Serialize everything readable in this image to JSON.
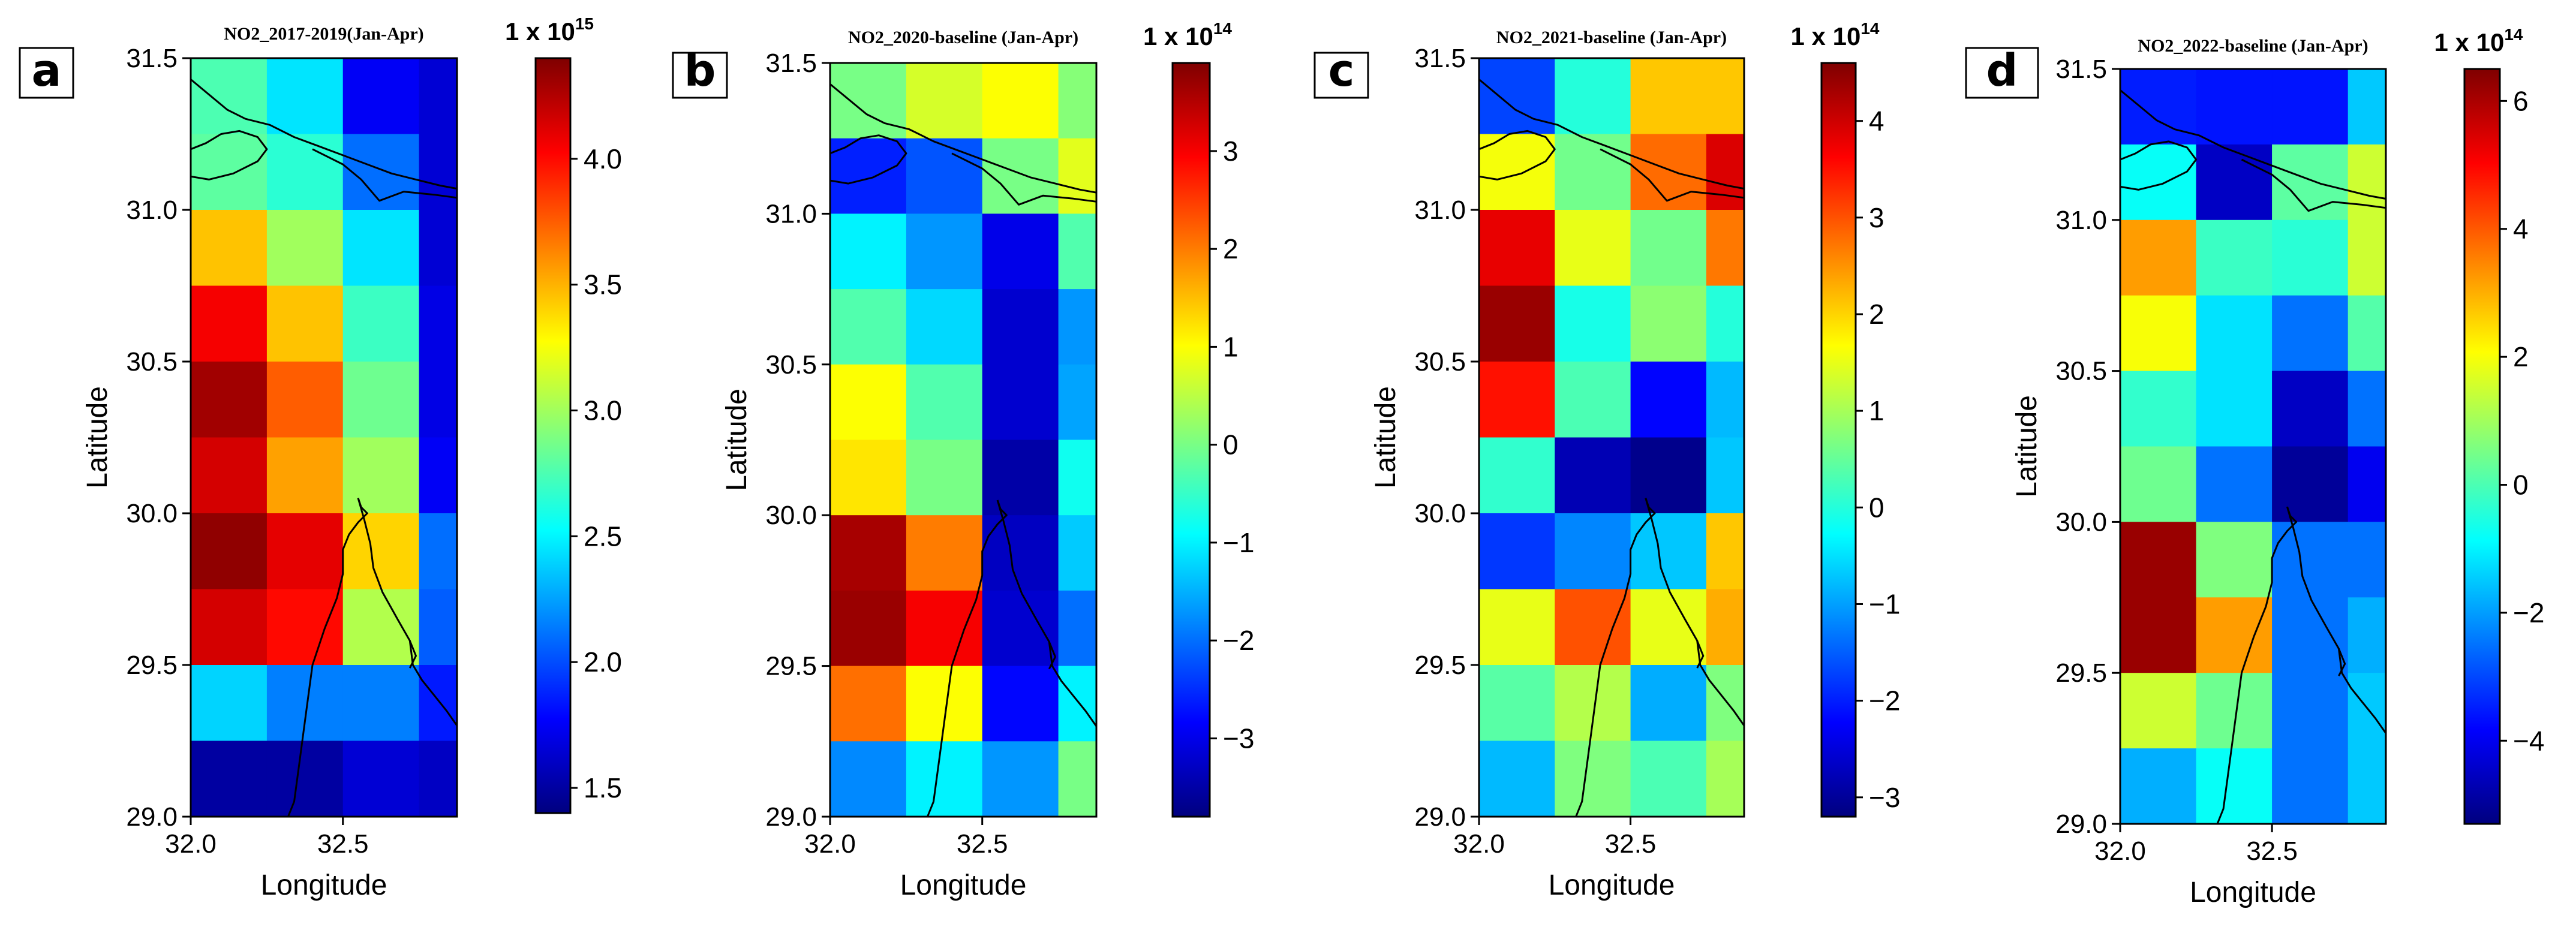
{
  "figure": {
    "coastline_color": "#000000",
    "colormap_name": "jet",
    "colormap": [
      "#00007f",
      "#0000ff",
      "#007fff",
      "#00ffff",
      "#7fff7f",
      "#ffff00",
      "#ff7f00",
      "#ff0000",
      "#7f0000"
    ]
  },
  "chart_data": [
    {
      "type": "heatmap",
      "panel_label": "a",
      "title": "NO2_2017-2019(Jan-Apr)",
      "xlabel": "Longitude",
      "ylabel": "Latitude",
      "xlim": [
        32.0,
        32.875
      ],
      "ylim": [
        29.0,
        31.5
      ],
      "xticks": [
        32.0,
        32.5
      ],
      "xtick_labels": [
        "32.0",
        "32.5"
      ],
      "yticks": [
        29.0,
        29.5,
        30.0,
        30.5,
        31.0,
        31.5
      ],
      "ytick_labels": [
        "29.0",
        "29.5",
        "30.0",
        "30.5",
        "31.0",
        "31.5"
      ],
      "x_edges": [
        32.0,
        32.25,
        32.5,
        32.75,
        32.875
      ],
      "y_edges": [
        31.5,
        31.25,
        31.0,
        30.75,
        30.5,
        30.25,
        30.0,
        29.75,
        29.5,
        29.25,
        29.0
      ],
      "values": [
        [
          2.75,
          2.45,
          1.75,
          1.65
        ],
        [
          2.8,
          2.65,
          2.1,
          1.65
        ],
        [
          3.45,
          3.0,
          2.45,
          1.65
        ],
        [
          4.05,
          3.45,
          2.7,
          1.7
        ],
        [
          4.3,
          3.75,
          2.85,
          1.7
        ],
        [
          4.15,
          3.55,
          3.0,
          1.75
        ],
        [
          4.35,
          4.1,
          3.4,
          2.1
        ],
        [
          4.15,
          4.0,
          3.05,
          2.05
        ],
        [
          2.4,
          2.15,
          2.15,
          1.85
        ],
        [
          1.5,
          1.5,
          1.65,
          1.6
        ]
      ],
      "colorbar": {
        "scale_label": "1 x 10",
        "exponent": "15",
        "min": 1.4,
        "max": 4.4,
        "ticks": [
          1.5,
          2.0,
          2.5,
          3.0,
          3.5,
          4.0
        ],
        "tick_labels": [
          "1.5",
          "2.0",
          "2.5",
          "3.0",
          "3.5",
          "4.0"
        ]
      }
    },
    {
      "type": "heatmap",
      "panel_label": "b",
      "title": "NO2_2020-baseline (Jan-Apr)",
      "xlabel": "Longitude",
      "ylabel": "Latitude",
      "xlim": [
        32.0,
        32.875
      ],
      "ylim": [
        29.0,
        31.5
      ],
      "xticks": [
        32.0,
        32.5
      ],
      "xtick_labels": [
        "32.0",
        "32.5"
      ],
      "yticks": [
        29.0,
        29.5,
        30.0,
        30.5,
        31.0,
        31.5
      ],
      "ytick_labels": [
        "29.0",
        "29.5",
        "30.0",
        "30.5",
        "31.0",
        "31.5"
      ],
      "x_edges": [
        32.0,
        32.25,
        32.5,
        32.75,
        32.875
      ],
      "y_edges": [
        31.5,
        31.25,
        31.0,
        30.75,
        30.5,
        30.25,
        30.0,
        29.75,
        29.5,
        29.25,
        29.0
      ],
      "values": [
        [
          0.0,
          0.7,
          1.0,
          0.1
        ],
        [
          -2.6,
          -2.2,
          0.0,
          0.8
        ],
        [
          -1.0,
          -1.7,
          -3.0,
          -0.3
        ],
        [
          -0.3,
          -1.2,
          -3.2,
          -1.7
        ],
        [
          1.0,
          -0.3,
          -3.2,
          -1.6
        ],
        [
          1.2,
          0.0,
          -3.5,
          -0.8
        ],
        [
          3.6,
          2.0,
          -3.3,
          -1.3
        ],
        [
          3.7,
          3.0,
          -3.2,
          -2.0
        ],
        [
          2.1,
          1.0,
          -2.8,
          -1.0
        ],
        [
          -1.8,
          -1.0,
          -1.7,
          0.0
        ]
      ],
      "colorbar": {
        "scale_label": "1 x 10",
        "exponent": "14",
        "min": -3.8,
        "max": 3.9,
        "ticks": [
          -3,
          -2,
          -1,
          0,
          1,
          2,
          3
        ],
        "tick_labels": [
          "−3",
          "−2",
          "−1",
          "0",
          "1",
          "2",
          "3"
        ]
      }
    },
    {
      "type": "heatmap",
      "panel_label": "c",
      "title": "NO2_2021-baseline (Jan-Apr)",
      "xlabel": "Longitude",
      "ylabel": "Latitude",
      "xlim": [
        32.0,
        32.875
      ],
      "ylim": [
        29.0,
        31.5
      ],
      "xticks": [
        32.0,
        32.5
      ],
      "xtick_labels": [
        "32.0",
        "32.5"
      ],
      "yticks": [
        29.0,
        29.5,
        30.0,
        30.5,
        31.0,
        31.5
      ],
      "ytick_labels": [
        "29.0",
        "29.5",
        "30.0",
        "30.5",
        "31.0",
        "31.5"
      ],
      "x_edges": [
        32.0,
        32.25,
        32.5,
        32.75,
        32.875
      ],
      "y_edges": [
        31.5,
        31.25,
        31.0,
        30.75,
        30.5,
        30.25,
        30.0,
        29.75,
        29.5,
        29.25,
        29.0
      ],
      "values": [
        [
          -1.7,
          0.0,
          2.1,
          2.1
        ],
        [
          1.6,
          0.6,
          2.8,
          3.9
        ],
        [
          3.8,
          1.5,
          0.6,
          2.7
        ],
        [
          4.4,
          -0.1,
          0.8,
          0.0
        ],
        [
          3.5,
          0.3,
          -2.2,
          -0.8
        ],
        [
          0.1,
          -2.8,
          -3.1,
          -0.7
        ],
        [
          -1.8,
          -1.2,
          -0.7,
          2.1
        ],
        [
          1.5,
          3.0,
          1.5,
          2.3
        ],
        [
          0.4,
          1.1,
          -0.9,
          0.7
        ],
        [
          -0.8,
          0.7,
          0.3,
          1.0
        ]
      ],
      "colorbar": {
        "scale_label": "1 x 10",
        "exponent": "14",
        "min": -3.2,
        "max": 4.6,
        "ticks": [
          -3,
          -2,
          -1,
          0,
          1,
          2,
          3,
          4
        ],
        "tick_labels": [
          "−3",
          "−2",
          "−1",
          "0",
          "1",
          "2",
          "3",
          "4"
        ]
      }
    },
    {
      "type": "heatmap",
      "panel_label": "d",
      "title": "NO2_2022-baseline (Jan-Apr)",
      "xlabel": "Longitude",
      "ylabel": "Latitude",
      "xlim": [
        32.0,
        32.875
      ],
      "ylim": [
        29.0,
        31.5
      ],
      "xticks": [
        32.0,
        32.5
      ],
      "xtick_labels": [
        "32.0",
        "32.5"
      ],
      "yticks": [
        29.0,
        29.5,
        30.0,
        30.5,
        31.0,
        31.5
      ],
      "ytick_labels": [
        "29.0",
        "29.5",
        "30.0",
        "30.5",
        "31.0",
        "31.5"
      ],
      "x_edges": [
        32.0,
        32.25,
        32.5,
        32.75,
        32.875
      ],
      "y_edges": [
        31.5,
        31.25,
        31.0,
        30.75,
        30.5,
        30.25,
        30.0,
        29.75,
        29.5,
        29.25,
        29.0
      ],
      "values": [
        [
          -3.5,
          -3.6,
          -3.6,
          -1.5
        ],
        [
          -0.8,
          -4.5,
          0.2,
          1.5
        ],
        [
          3.2,
          -0.2,
          -0.4,
          1.5
        ],
        [
          2.0,
          -1.2,
          -2.5,
          0.1
        ],
        [
          -0.3,
          -1.2,
          -4.5,
          -2.5
        ],
        [
          0.4,
          -2.5,
          -5.0,
          -4.0
        ],
        [
          6.2,
          0.6,
          -2.5,
          -2.5
        ],
        [
          6.2,
          3.2,
          -2.5,
          -1.8
        ],
        [
          1.5,
          0.4,
          -2.5,
          -1.5
        ],
        [
          -1.8,
          -0.8,
          -2.5,
          -1.5
        ]
      ],
      "colorbar": {
        "scale_label": "1 x 10",
        "exponent": "14",
        "min": -5.3,
        "max": 6.5,
        "ticks": [
          -4,
          -2,
          0,
          2,
          4,
          6
        ],
        "tick_labels": [
          "−4",
          "−2",
          "0",
          "2",
          "4",
          "6"
        ]
      }
    }
  ]
}
